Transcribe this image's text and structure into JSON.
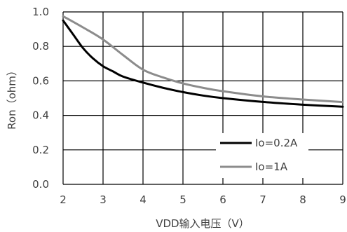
{
  "chart_data": {
    "type": "line",
    "title": "",
    "xlabel": "VDD输入电压（V）",
    "ylabel": "Ron（ohm）",
    "xlim": [
      2,
      9
    ],
    "ylim": [
      0.0,
      1.0
    ],
    "xticks": [
      2,
      3,
      4,
      5,
      6,
      7,
      8,
      9
    ],
    "yticks": [
      "0.0",
      "0.2",
      "0.4",
      "0.6",
      "0.8",
      "1.0"
    ],
    "grid": true,
    "legend_position": "bottom-right",
    "series": [
      {
        "name": "Io=0.2A",
        "color": "#000000",
        "points": [
          [
            2.0,
            0.95
          ],
          [
            2.25,
            0.87
          ],
          [
            2.5,
            0.79
          ],
          [
            2.75,
            0.73
          ],
          [
            3.0,
            0.685
          ],
          [
            3.25,
            0.655
          ],
          [
            3.5,
            0.625
          ],
          [
            4.0,
            0.59
          ],
          [
            4.5,
            0.56
          ],
          [
            5.0,
            0.535
          ],
          [
            5.5,
            0.515
          ],
          [
            6.0,
            0.5
          ],
          [
            7.0,
            0.478
          ],
          [
            8.0,
            0.462
          ],
          [
            9.0,
            0.45
          ]
        ]
      },
      {
        "name": "Io=1A",
        "color": "#8c8c8c",
        "points": [
          [
            2.0,
            0.975
          ],
          [
            2.5,
            0.91
          ],
          [
            3.0,
            0.84
          ],
          [
            3.5,
            0.75
          ],
          [
            4.0,
            0.665
          ],
          [
            4.5,
            0.62
          ],
          [
            5.0,
            0.585
          ],
          [
            5.5,
            0.56
          ],
          [
            6.0,
            0.54
          ],
          [
            7.0,
            0.51
          ],
          [
            8.0,
            0.492
          ],
          [
            9.0,
            0.477
          ]
        ]
      }
    ]
  }
}
